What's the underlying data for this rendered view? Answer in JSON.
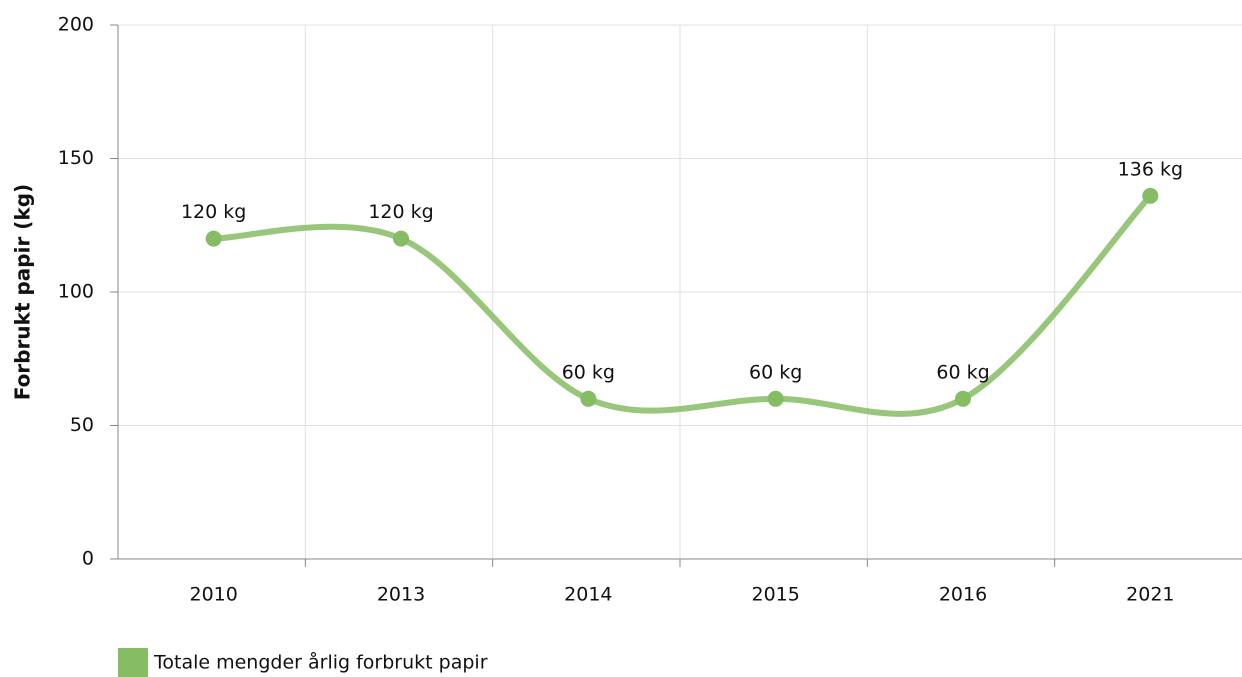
{
  "chart_data": {
    "type": "line",
    "y_label": "Forbrukt papir (kg)",
    "categories": [
      "2010",
      "2013",
      "2014",
      "2015",
      "2016",
      "2021"
    ],
    "series": [
      {
        "name": "Totale mengder årlig forbrukt papir",
        "color": "#86bc64",
        "values": [
          120,
          120,
          60,
          60,
          60,
          136
        ],
        "value_labels": [
          "120 kg",
          "120 kg",
          "60 kg",
          "60 kg",
          "60 kg",
          "136 kg"
        ]
      }
    ],
    "ylim": [
      0,
      200
    ],
    "yticks": [
      0,
      50,
      100,
      150,
      200
    ],
    "grid": true,
    "legend": "bottom-left"
  }
}
